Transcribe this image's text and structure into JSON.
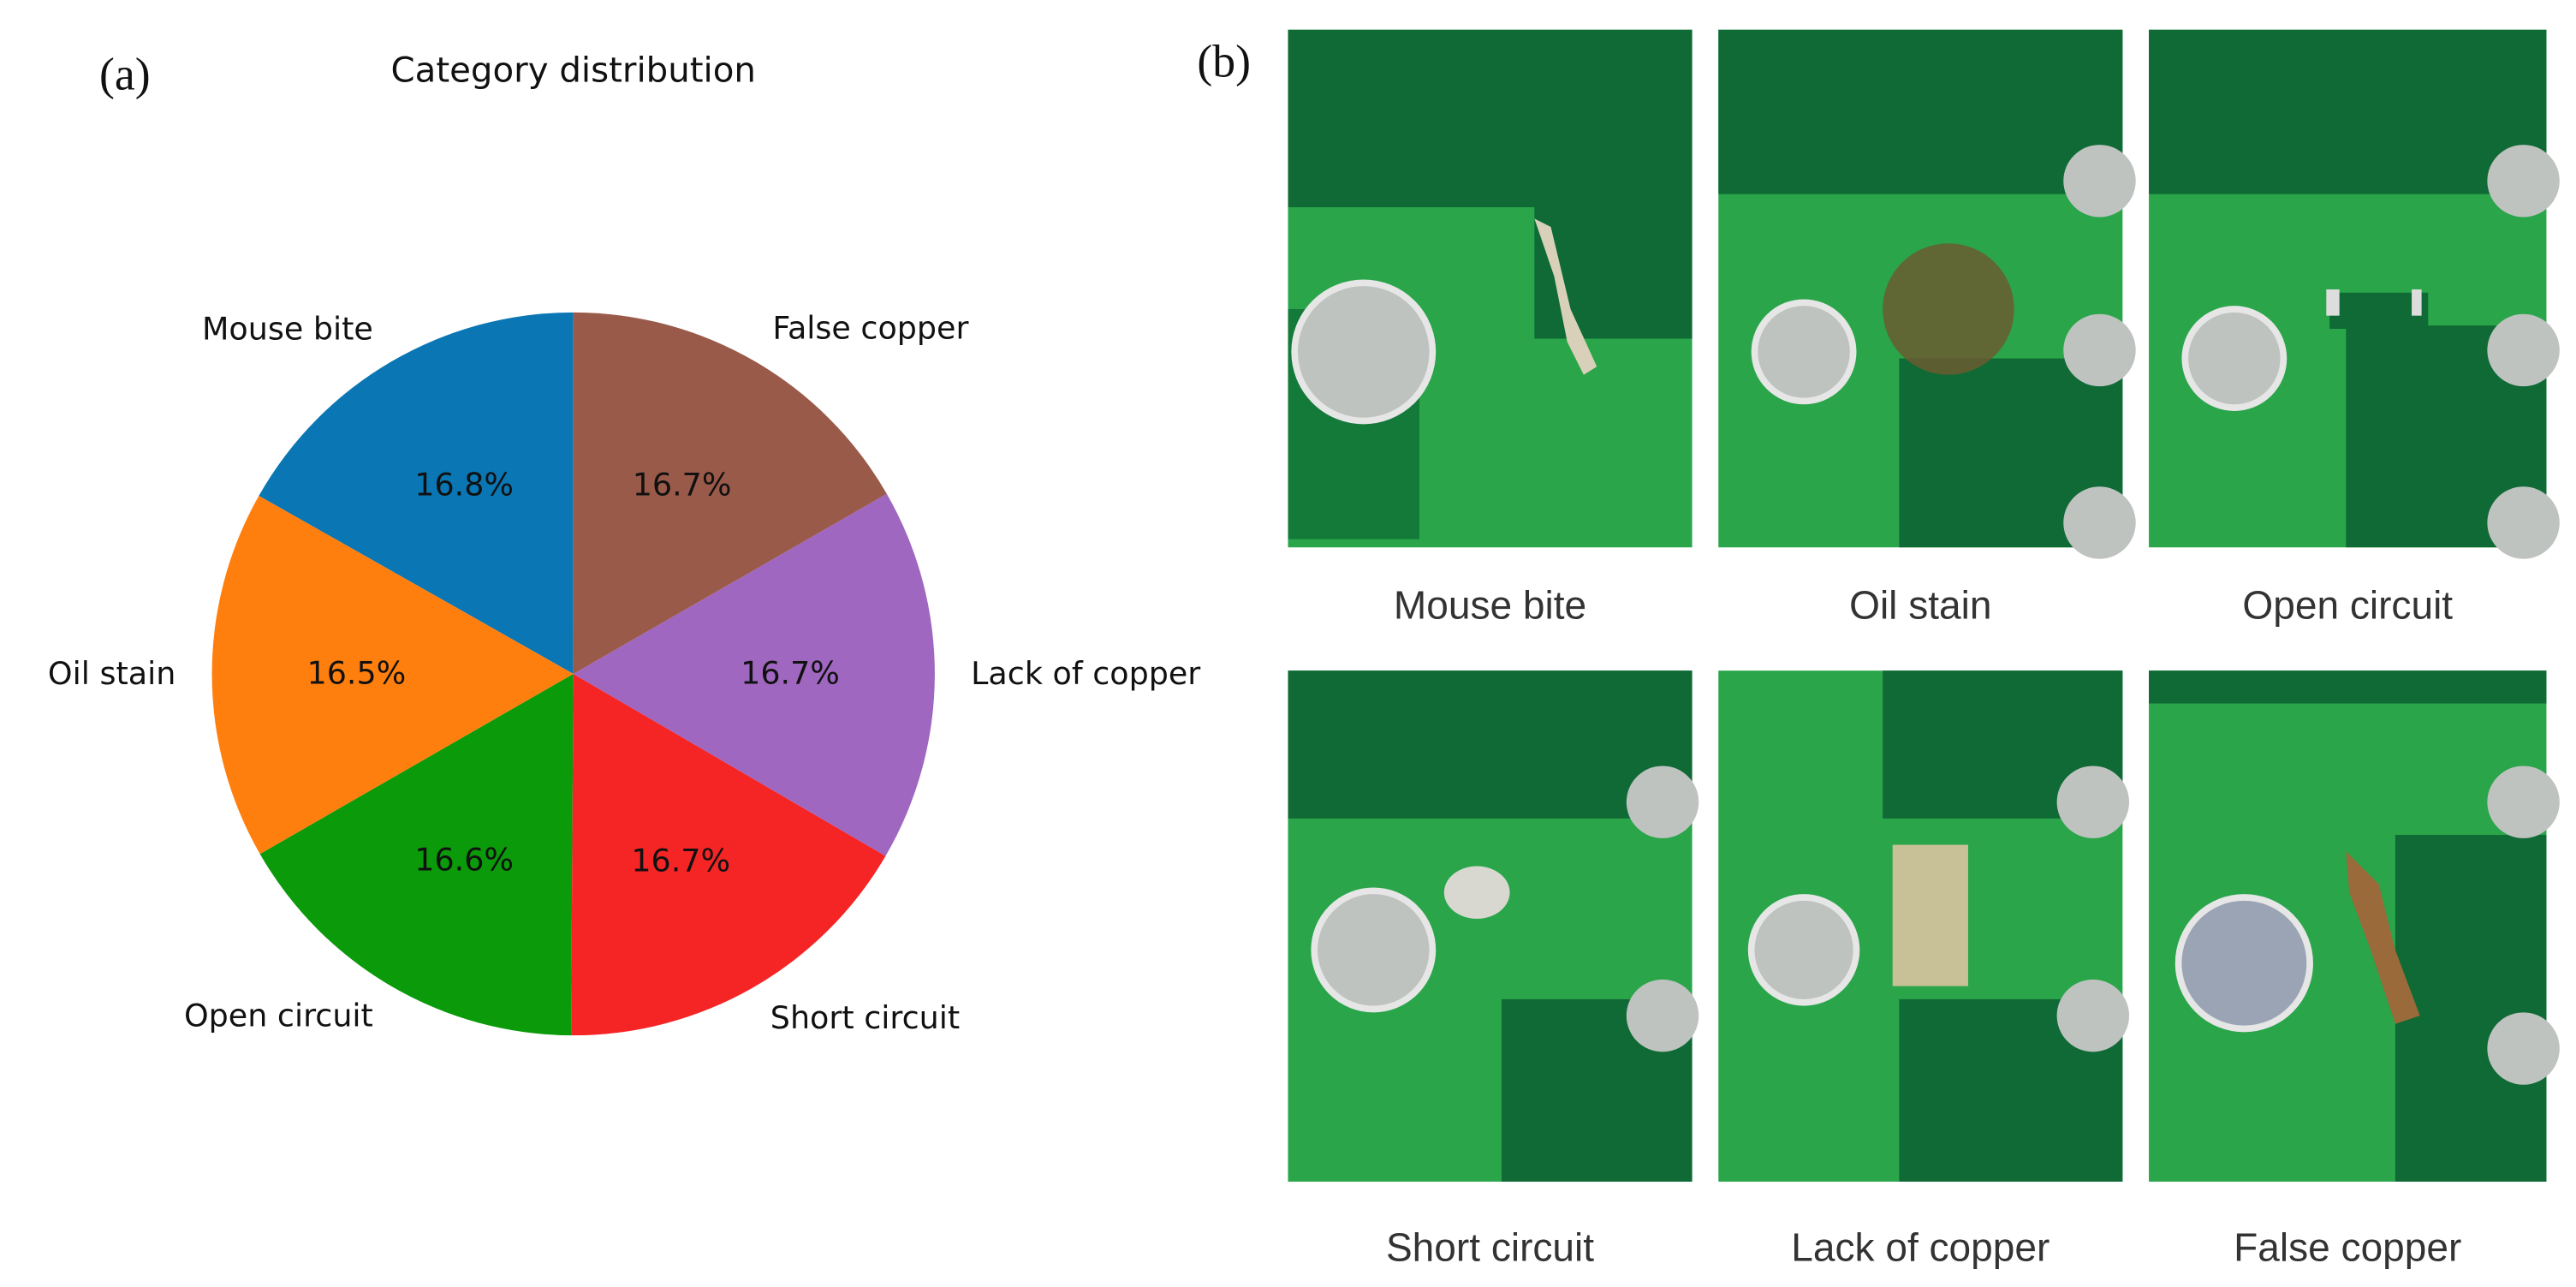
{
  "chart_data": {
    "type": "pie",
    "title": "Category distribution",
    "categories": [
      "Mouse bite",
      "Oil stain",
      "Open circuit",
      "Short circuit",
      "Lack of copper",
      "False copper"
    ],
    "values": [
      16.8,
      16.5,
      16.6,
      16.7,
      16.7,
      16.7
    ],
    "value_labels": [
      "16.8%",
      "16.5%",
      "16.6%",
      "16.7%",
      "16.7%",
      "16.7%"
    ],
    "colors": [
      "#0a76b4",
      "#ff7f0e",
      "#0a9a0a",
      "#f52525",
      "#9f67c0",
      "#9a5a4a"
    ],
    "start_angle": 90
  },
  "panels": {
    "a": "(a)",
    "b": "(b)"
  },
  "images": [
    {
      "caption": "Mouse bite"
    },
    {
      "caption": "Oil stain"
    },
    {
      "caption": "Open circuit"
    },
    {
      "caption": "Short circuit"
    },
    {
      "caption": "Lack of copper"
    },
    {
      "caption": "False copper"
    }
  ]
}
